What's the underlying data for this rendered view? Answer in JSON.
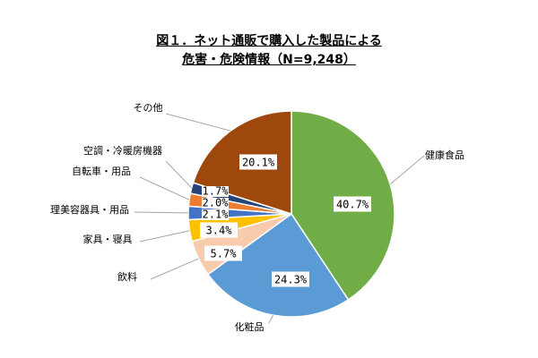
{
  "chart_data": {
    "type": "pie",
    "title_line1": "図１．ネット通販で購入した製品による",
    "title_line2": "危害・危険情報（N=9,248）",
    "slices": [
      {
        "name": "健康食品",
        "value": 40.7,
        "label": "40.7%",
        "color": "#70AD47"
      },
      {
        "name": "化粧品",
        "value": 24.3,
        "label": "24.3%",
        "color": "#5B9BD5"
      },
      {
        "name": "飲料",
        "value": 5.7,
        "label": "5.7%",
        "color": "#F8CBAD"
      },
      {
        "name": "家具・寝具",
        "value": 3.4,
        "label": "3.4%",
        "color": "#FFC000"
      },
      {
        "name": "理美容器具・用品",
        "value": 2.1,
        "label": "2.1%",
        "color": "#4472C4"
      },
      {
        "name": "自転車・用品",
        "value": 2.0,
        "label": "2.0%",
        "color": "#ED7D31"
      },
      {
        "name": "空調・冷暖房機器",
        "value": 1.7,
        "label": "1.7%",
        "color": "#264478"
      },
      {
        "name": "その他",
        "value": 20.1,
        "label": "20.1%",
        "color": "#9E480E"
      }
    ]
  }
}
